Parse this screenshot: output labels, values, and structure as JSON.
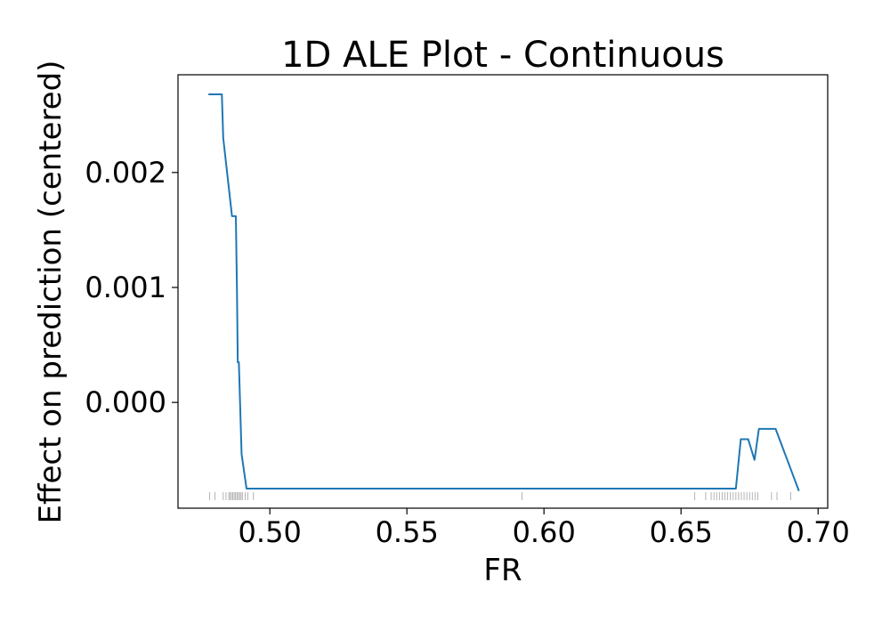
{
  "chart_data": {
    "type": "line",
    "title": "1D ALE Plot - Continuous",
    "xlabel": "FR",
    "ylabel": "Effect on prediction (centered)",
    "xlim": [
      0.4665,
      0.7035
    ],
    "ylim": [
      -0.00092,
      0.00285
    ],
    "xticks": [
      {
        "value": 0.5,
        "label": "0.50"
      },
      {
        "value": 0.55,
        "label": "0.55"
      },
      {
        "value": 0.6,
        "label": "0.60"
      },
      {
        "value": 0.65,
        "label": "0.65"
      },
      {
        "value": 0.7,
        "label": "0.70"
      }
    ],
    "yticks": [
      {
        "value": 0.002,
        "label": "0.002"
      },
      {
        "value": 0.001,
        "label": "0.001"
      },
      {
        "value": 0.0,
        "label": "0.000"
      }
    ],
    "grid": false,
    "series": [
      {
        "name": "",
        "color": "#1f77b4",
        "x": [
          0.4776,
          0.4825,
          0.483,
          0.4862,
          0.4876,
          0.488,
          0.4883,
          0.4887,
          0.4897,
          0.4915,
          0.67,
          0.6718,
          0.6745,
          0.6768,
          0.6784,
          0.6845,
          0.693
        ],
        "y": [
          0.00268,
          0.00268,
          0.0023,
          0.00162,
          0.00162,
          0.001,
          0.00035,
          0.00035,
          -0.00045,
          -0.00075,
          -0.00075,
          -0.00032,
          -0.00032,
          -0.0005,
          -0.00023,
          -0.00023,
          -0.00077
        ]
      }
    ],
    "rug": {
      "color": "#888888",
      "x": [
        0.478,
        0.48,
        0.483,
        0.484,
        0.485,
        0.4855,
        0.486,
        0.4865,
        0.487,
        0.4875,
        0.488,
        0.4885,
        0.489,
        0.4895,
        0.49,
        0.491,
        0.492,
        0.494,
        0.592,
        0.655,
        0.659,
        0.661,
        0.662,
        0.663,
        0.664,
        0.665,
        0.666,
        0.667,
        0.668,
        0.669,
        0.67,
        0.671,
        0.672,
        0.673,
        0.674,
        0.675,
        0.676,
        0.677,
        0.678,
        0.683,
        0.685,
        0.69
      ]
    }
  }
}
